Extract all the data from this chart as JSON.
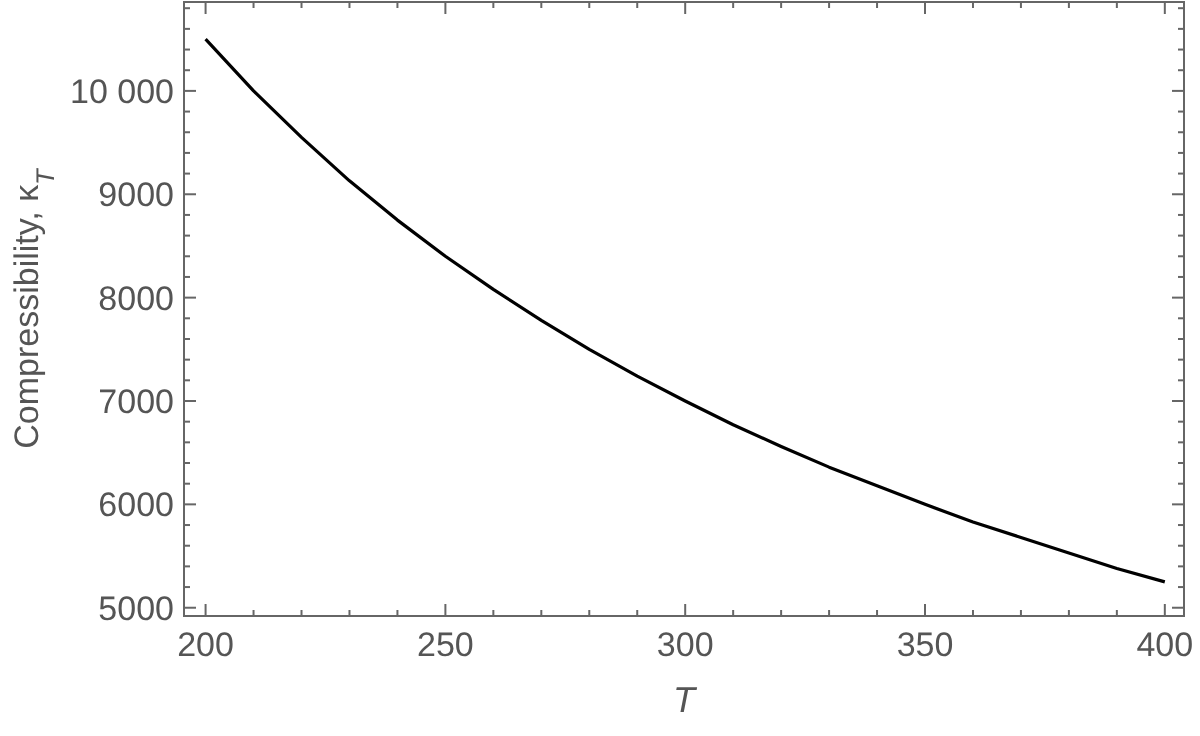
{
  "chart_data": {
    "type": "line",
    "xlabel": "T",
    "ylabel": "Compressibility, κ$_{T}$",
    "x": [
      200,
      210,
      220,
      230,
      240,
      250,
      260,
      270,
      280,
      290,
      300,
      310,
      320,
      330,
      340,
      350,
      360,
      370,
      380,
      390,
      400
    ],
    "series": [
      {
        "color": "#000000",
        "values": [
          10500,
          10000,
          9550,
          9130,
          8750,
          8400,
          8080,
          7780,
          7500,
          7240,
          7000,
          6770,
          6560,
          6360,
          6180,
          6000,
          5830,
          5680,
          5530,
          5380,
          5250
        ]
      }
    ],
    "xlim": [
      195.5,
      404
    ],
    "ylim": [
      4920,
      10860
    ],
    "xticks": [
      200,
      {
        "value": 210,
        "label": null
      },
      {
        "value": 220,
        "label": null
      },
      {
        "value": 230,
        "label": null
      },
      {
        "value": 240,
        "label": null
      },
      250,
      {
        "value": 260,
        "label": null
      },
      {
        "value": 270,
        "label": null
      },
      {
        "value": 280,
        "label": null
      },
      {
        "value": 290,
        "label": null
      },
      300,
      {
        "value": 310,
        "label": null
      },
      {
        "value": 320,
        "label": null
      },
      {
        "value": 330,
        "label": null
      },
      {
        "value": 340,
        "label": null
      },
      350,
      {
        "value": 360,
        "label": null
      },
      {
        "value": 370,
        "label": null
      },
      {
        "value": 380,
        "label": null
      },
      {
        "value": 390,
        "label": null
      },
      400
    ],
    "yticks": [
      5000,
      {
        "value": 5200,
        "label": null
      },
      {
        "value": 5400,
        "label": null
      },
      {
        "value": 5600,
        "label": null
      },
      {
        "value": 5800,
        "label": null
      },
      6000,
      {
        "value": 6200,
        "label": null
      },
      {
        "value": 6400,
        "label": null
      },
      {
        "value": 6600,
        "label": null
      },
      {
        "value": 6800,
        "label": null
      },
      7000,
      {
        "value": 7200,
        "label": null
      },
      {
        "value": 7400,
        "label": null
      },
      {
        "value": 7600,
        "label": null
      },
      {
        "value": 7800,
        "label": null
      },
      8000,
      {
        "value": 8200,
        "label": null
      },
      {
        "value": 8400,
        "label": null
      },
      {
        "value": 8600,
        "label": null
      },
      {
        "value": 8800,
        "label": null
      },
      9000,
      {
        "value": 9200,
        "label": null
      },
      {
        "value": 9400,
        "label": null
      },
      {
        "value": 9600,
        "label": null
      },
      {
        "value": 9800,
        "label": null
      },
      {
        "value": 10000,
        "label": "10 000"
      },
      {
        "value": 10200,
        "label": null
      },
      {
        "value": 10400,
        "label": null
      },
      {
        "value": 10600,
        "label": null
      },
      {
        "value": 10800,
        "label": null
      }
    ],
    "marker": "none",
    "line_style": "solid",
    "grid": false
  }
}
